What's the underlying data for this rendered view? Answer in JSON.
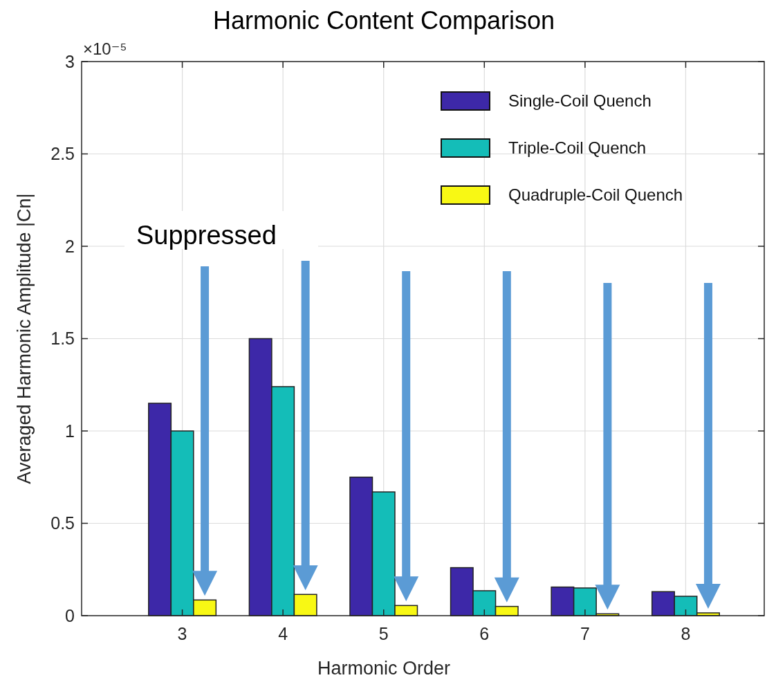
{
  "chart_data": {
    "type": "bar",
    "title": "Harmonic Content Comparison",
    "xlabel": "Harmonic Order",
    "ylabel": "Averaged Harmonic Amplitude |Cn|",
    "categories": [
      "3",
      "4",
      "5",
      "6",
      "7",
      "8"
    ],
    "series": [
      {
        "name": "Single-Coil Quench",
        "color": "#3d28a8",
        "values": [
          1.15,
          1.5,
          0.75,
          0.26,
          0.155,
          0.13
        ]
      },
      {
        "name": "Triple-Coil Quench",
        "color": "#14bdb8",
        "values": [
          1.0,
          1.24,
          0.67,
          0.135,
          0.15,
          0.105
        ]
      },
      {
        "name": "Quadruple-Coil Quench",
        "color": "#f8f814",
        "values": [
          0.085,
          0.115,
          0.055,
          0.05,
          0.01,
          0.015
        ]
      }
    ],
    "ylim": [
      0,
      3
    ],
    "yticks": [
      0,
      0.5,
      1,
      1.5,
      2,
      2.5,
      3
    ],
    "annotations": [
      "×10⁻⁵",
      "Suppressed"
    ],
    "grid": true,
    "legend": "top right"
  }
}
